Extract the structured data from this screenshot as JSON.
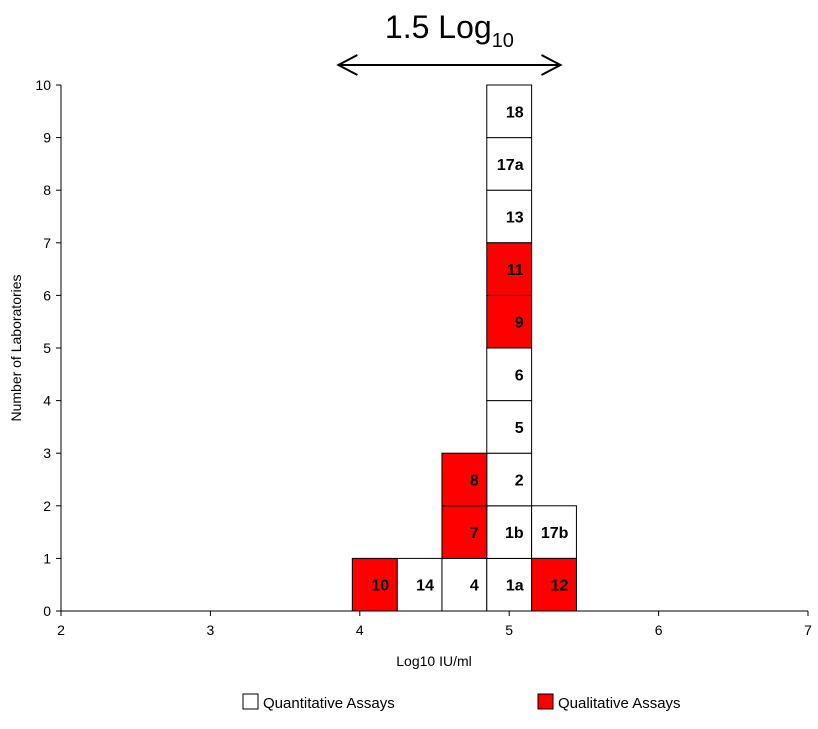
{
  "chart_data": {
    "type": "bar",
    "title": "",
    "xlabel": "Log10 IU/ml",
    "ylabel": "Number of Laboratories",
    "xlim": [
      2,
      7
    ],
    "ylim": [
      0,
      10
    ],
    "x_ticks": [
      "2",
      "3",
      "4",
      "5",
      "6",
      "7"
    ],
    "y_ticks": [
      "0",
      "1",
      "2",
      "3",
      "4",
      "5",
      "6",
      "7",
      "8",
      "9",
      "10"
    ],
    "bin_width": 0.3,
    "grid": false,
    "legend_position": "bottom",
    "series": [
      {
        "name": "Quantitative Assays",
        "color": "#ffffff",
        "points": [
          {
            "label": "14",
            "x": 4.25,
            "stack": 1
          },
          {
            "label": "4",
            "x": 4.55,
            "stack": 1
          },
          {
            "label": "1a",
            "x": 4.85,
            "stack": 1
          },
          {
            "label": "1b",
            "x": 4.85,
            "stack": 2
          },
          {
            "label": "2",
            "x": 4.85,
            "stack": 3
          },
          {
            "label": "5",
            "x": 4.85,
            "stack": 4
          },
          {
            "label": "6",
            "x": 4.85,
            "stack": 5
          },
          {
            "label": "13",
            "x": 4.85,
            "stack": 8
          },
          {
            "label": "17a",
            "x": 4.85,
            "stack": 9
          },
          {
            "label": "18",
            "x": 4.85,
            "stack": 10
          },
          {
            "label": "17b",
            "x": 5.15,
            "stack": 2
          }
        ]
      },
      {
        "name": "Qualitative Assays",
        "color": "#ff0000",
        "points": [
          {
            "label": "10",
            "x": 3.95,
            "stack": 1
          },
          {
            "label": "7",
            "x": 4.55,
            "stack": 2
          },
          {
            "label": "8",
            "x": 4.55,
            "stack": 3
          },
          {
            "label": "9",
            "x": 4.85,
            "stack": 6
          },
          {
            "label": "11",
            "x": 4.85,
            "stack": 7
          },
          {
            "label": "12",
            "x": 5.15,
            "stack": 1
          }
        ]
      }
    ],
    "annotation": {
      "text_main": "1.5 Log",
      "text_sub": "10",
      "x_from": 3.85,
      "x_to": 5.35
    }
  }
}
